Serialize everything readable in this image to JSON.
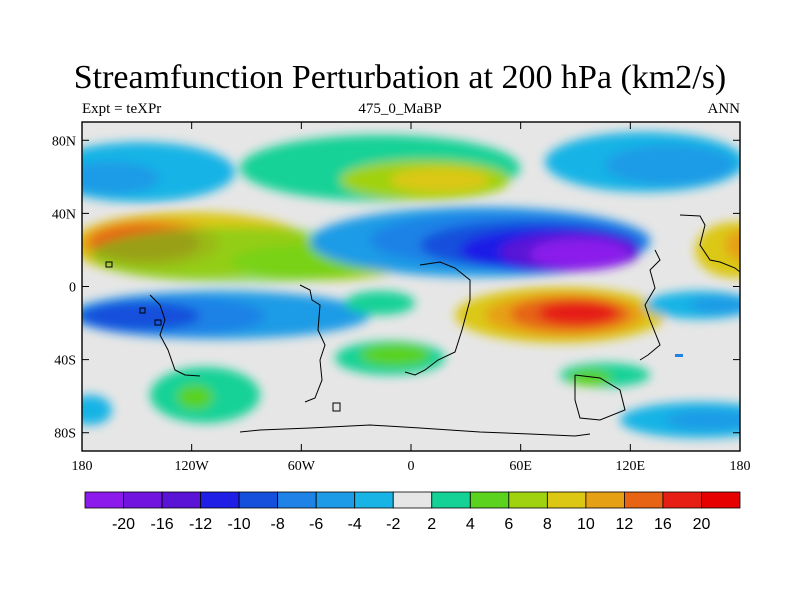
{
  "title": "Streamfunction Perturbation at 200 hPa (km2/s)",
  "subtitle_left": "Expt = teXPr",
  "subtitle_center": "475_0_MaBP",
  "subtitle_right": "ANN",
  "chart_data": {
    "type": "heatmap",
    "projection": "cylindrical equidistant",
    "grid": false,
    "x_axis": {
      "ticks": [
        "180",
        "120W",
        "60W",
        "0",
        "60E",
        "120E",
        "180"
      ],
      "range": [
        -180,
        180
      ]
    },
    "y_axis": {
      "ticks": [
        "80N",
        "40N",
        "0",
        "40S",
        "80S"
      ],
      "range": [
        -90,
        90
      ]
    },
    "colorbar": {
      "labels": [
        "-20",
        "-16",
        "-12",
        "-10",
        "-8",
        "-6",
        "-4",
        "-2",
        "2",
        "4",
        "6",
        "8",
        "10",
        "12",
        "16",
        "20"
      ],
      "colors": [
        "#8b1aeb",
        "#7214e0",
        "#5a14d6",
        "#1e1ee6",
        "#1450dc",
        "#1e82e6",
        "#1e9be6",
        "#19b4e6",
        "#e6e6e6",
        "#14d296",
        "#5ad21e",
        "#a0d20f",
        "#dcc814",
        "#e6a014",
        "#e66414",
        "#e61e14",
        "#e60000"
      ]
    },
    "regions": [
      {
        "class": 14,
        "lon": -140,
        "lat": 22
      },
      {
        "class": 15,
        "lon": -140,
        "lat": 25
      },
      {
        "class": 12,
        "lon": -112,
        "lat": 22
      },
      {
        "class": 11,
        "lon": -65,
        "lat": 16
      },
      {
        "class": 11,
        "lon": 165,
        "lat": 22
      },
      {
        "class": 0,
        "lon": 85,
        "lat": 17
      },
      {
        "class": 3,
        "lon": 60,
        "lat": 24
      },
      {
        "class": 4,
        "lon": 30,
        "lat": 30
      },
      {
        "class": 16,
        "lon": 85,
        "lat": -15
      },
      {
        "class": 13,
        "lon": 60,
        "lat": -10
      },
      {
        "class": 4,
        "lon": -140,
        "lat": -15
      },
      {
        "class": 3,
        "lon": -150,
        "lat": -16
      },
      {
        "class": 7,
        "lon": -10,
        "lat": -9
      },
      {
        "class": 10,
        "lon": 10,
        "lat": -40
      },
      {
        "class": 10,
        "lon": -140,
        "lat": -60
      },
      {
        "class": 10,
        "lon": 140,
        "lat": -48
      },
      {
        "class": 11,
        "lon": 25,
        "lat": 58
      },
      {
        "class": 9,
        "lon": -40,
        "lat": 66
      },
      {
        "class": 6,
        "lon": -155,
        "lat": 70
      },
      {
        "class": 6,
        "lon": 140,
        "lat": 70
      },
      {
        "class": 6,
        "lon": 150,
        "lat": -72
      },
      {
        "class": 5,
        "lon": -180,
        "lat": -66
      }
    ]
  }
}
